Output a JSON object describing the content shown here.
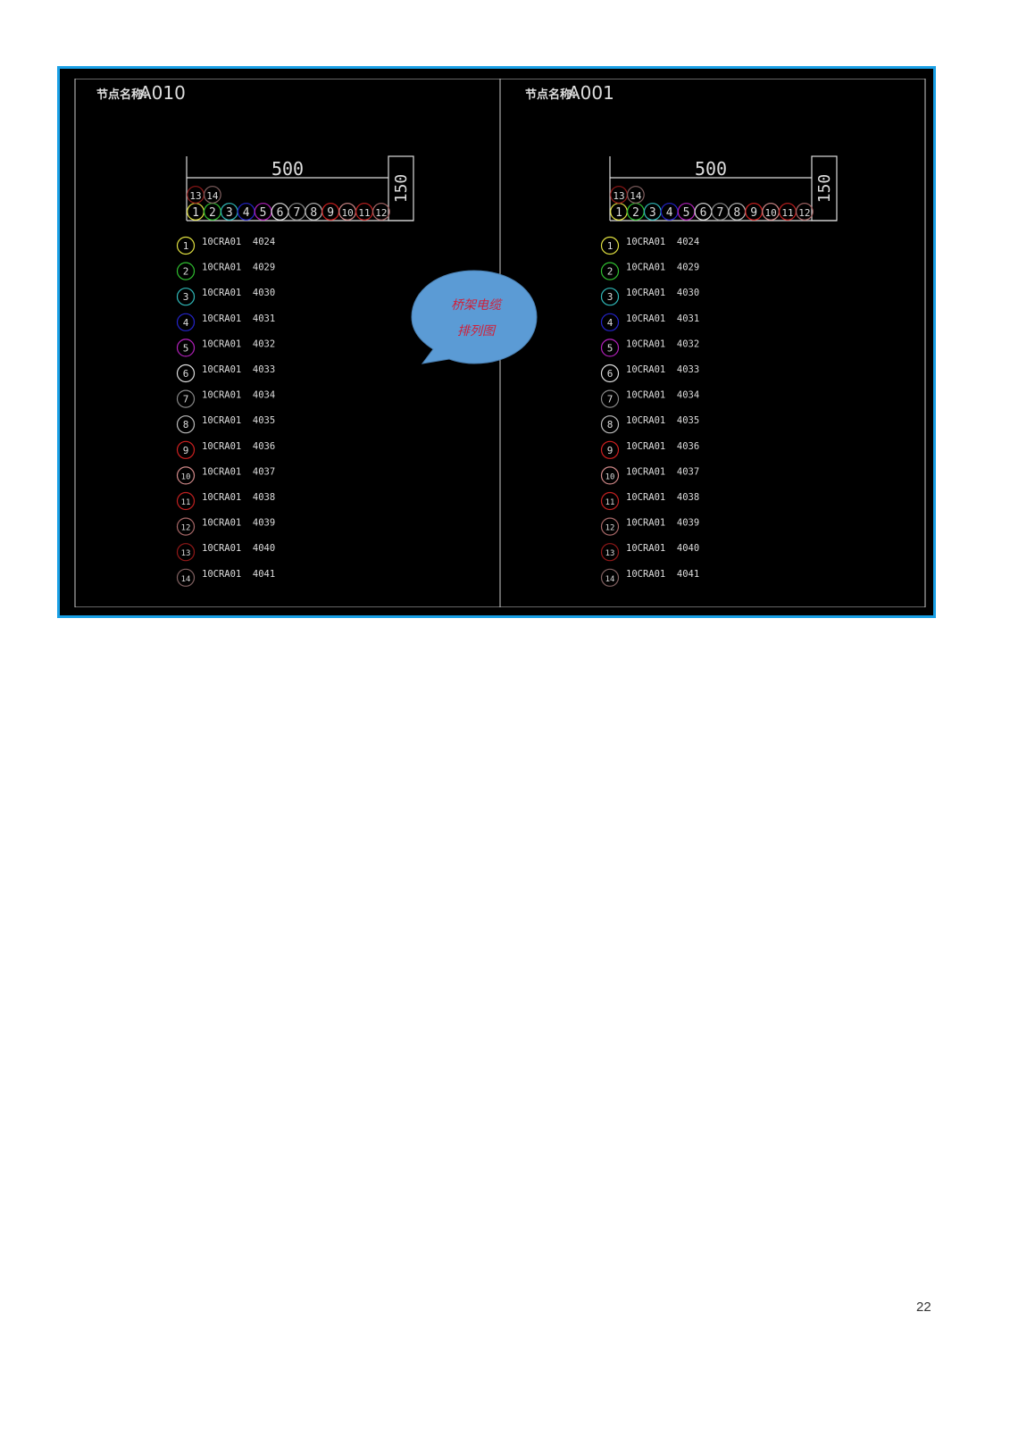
{
  "panels": [
    {
      "title_label": "节点名称:",
      "node_name": "A010",
      "tray_width": "500",
      "tray_height": "150",
      "cables": [
        {
          "no": "1",
          "id": "10CRA01  4024",
          "color": "#e0e040"
        },
        {
          "no": "2",
          "id": "10CRA01  4029",
          "color": "#30c030"
        },
        {
          "no": "3",
          "id": "10CRA01  4030",
          "color": "#30b8b8"
        },
        {
          "no": "4",
          "id": "10CRA01  4031",
          "color": "#2424c8"
        },
        {
          "no": "5",
          "id": "10CRA01  4032",
          "color": "#b020b8"
        },
        {
          "no": "6",
          "id": "10CRA01  4033",
          "color": "#dddddd"
        },
        {
          "no": "7",
          "id": "10CRA01  4034",
          "color": "#888888"
        },
        {
          "no": "8",
          "id": "10CRA01  4035",
          "color": "#bbbbbb"
        },
        {
          "no": "9",
          "id": "10CRA01  4036",
          "color": "#d02020"
        },
        {
          "no": "10",
          "id": "10CRA01  4037",
          "color": "#d08888"
        },
        {
          "no": "11",
          "id": "10CRA01  4038",
          "color": "#c02020"
        },
        {
          "no": "12",
          "id": "10CRA01  4039",
          "color": "#a86868"
        },
        {
          "no": "13",
          "id": "10CRA01  4040",
          "color": "#901818"
        },
        {
          "no": "14",
          "id": "10CRA01  4041",
          "color": "#806060"
        }
      ]
    },
    {
      "title_label": "节点名称:",
      "node_name": "A001",
      "tray_width": "500",
      "tray_height": "150",
      "cables": [
        {
          "no": "1",
          "id": "10CRA01  4024",
          "color": "#e0e040"
        },
        {
          "no": "2",
          "id": "10CRA01  4029",
          "color": "#30c030"
        },
        {
          "no": "3",
          "id": "10CRA01  4030",
          "color": "#30b8b8"
        },
        {
          "no": "4",
          "id": "10CRA01  4031",
          "color": "#2424c8"
        },
        {
          "no": "5",
          "id": "10CRA01  4032",
          "color": "#b020b8"
        },
        {
          "no": "6",
          "id": "10CRA01  4033",
          "color": "#dddddd"
        },
        {
          "no": "7",
          "id": "10CRA01  4034",
          "color": "#888888"
        },
        {
          "no": "8",
          "id": "10CRA01  4035",
          "color": "#bbbbbb"
        },
        {
          "no": "9",
          "id": "10CRA01  4036",
          "color": "#d02020"
        },
        {
          "no": "10",
          "id": "10CRA01  4037",
          "color": "#d08888"
        },
        {
          "no": "11",
          "id": "10CRA01  4038",
          "color": "#c02020"
        },
        {
          "no": "12",
          "id": "10CRA01  4039",
          "color": "#a86868"
        },
        {
          "no": "13",
          "id": "10CRA01  4040",
          "color": "#901818"
        },
        {
          "no": "14",
          "id": "10CRA01  4041",
          "color": "#806060"
        }
      ]
    }
  ],
  "callout": {
    "line1": "桥架电缆",
    "line2": "排列图",
    "fill": "#5b9bd5",
    "text_color": "#d0203a"
  },
  "frame_border_color": "#1aa0e6",
  "page_number": "22"
}
